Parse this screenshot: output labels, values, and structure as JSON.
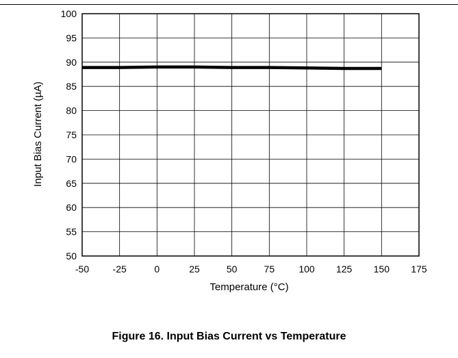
{
  "figure": {
    "caption": "Figure 16. Input Bias Current vs Temperature"
  },
  "chart_data": {
    "type": "line",
    "xlabel": "Temperature (°C)",
    "ylabel": "Input Bias Current (µA)",
    "xlim": [
      -50,
      175
    ],
    "ylim": [
      50,
      100
    ],
    "x_ticks": [
      -50,
      -25,
      0,
      25,
      50,
      75,
      100,
      125,
      150,
      175
    ],
    "y_ticks": [
      50,
      55,
      60,
      65,
      70,
      75,
      80,
      85,
      90,
      95,
      100
    ],
    "grid": true,
    "series": [
      {
        "x": [
          -50,
          -25,
          0,
          25,
          50,
          75,
          100,
          125,
          150
        ],
        "y": [
          88.9,
          88.9,
          89.0,
          89.0,
          88.9,
          88.9,
          88.8,
          88.7,
          88.7
        ],
        "color": "#000000"
      }
    ]
  }
}
